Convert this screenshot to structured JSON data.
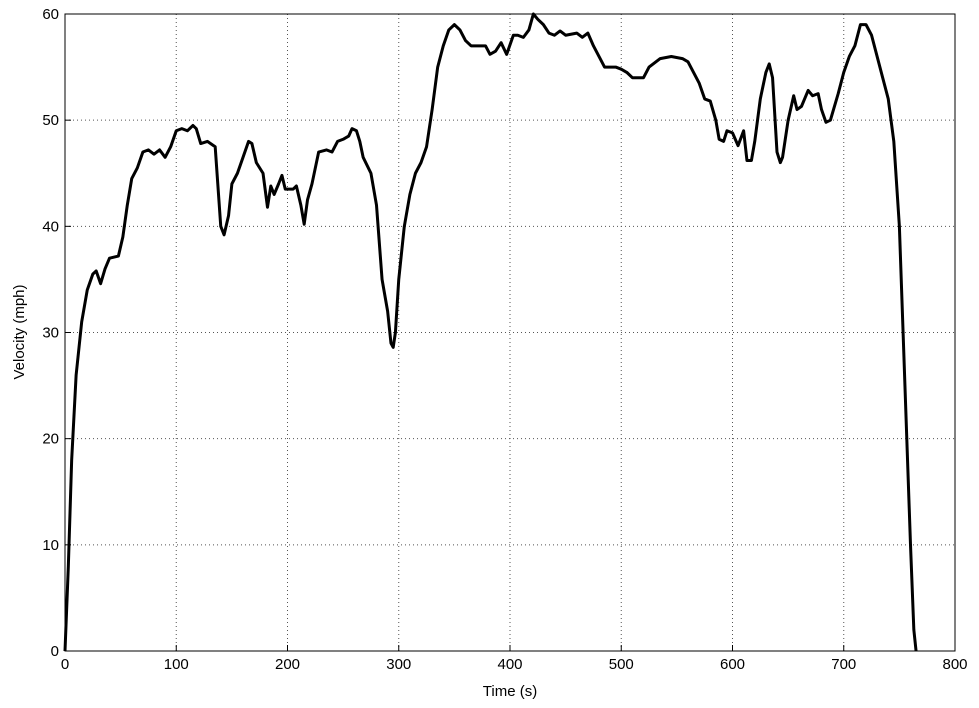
{
  "chart_data": {
    "type": "line",
    "xlabel": "Time (s)",
    "ylabel": "Velocity (mph)",
    "x": [
      0,
      3,
      6,
      10,
      15,
      20,
      25,
      28,
      32,
      36,
      40,
      48,
      52,
      56,
      60,
      65,
      70,
      75,
      80,
      85,
      90,
      95,
      100,
      105,
      110,
      115,
      118,
      122,
      128,
      135,
      140,
      143,
      147,
      150,
      155,
      160,
      165,
      168,
      172,
      178,
      182,
      185,
      188,
      192,
      195,
      198,
      205,
      208,
      212,
      215,
      218,
      222,
      228,
      235,
      240,
      245,
      250,
      255,
      258,
      262,
      265,
      268,
      275,
      280,
      285,
      290,
      293,
      295,
      297,
      300,
      305,
      310,
      315,
      320,
      325,
      330,
      335,
      340,
      345,
      350,
      355,
      360,
      365,
      372,
      378,
      382,
      387,
      392,
      397,
      403,
      407,
      412,
      417,
      421,
      425,
      430,
      435,
      440,
      445,
      450,
      460,
      465,
      470,
      475,
      480,
      485,
      495,
      500,
      505,
      510,
      520,
      525,
      535,
      545,
      555,
      560,
      565,
      570,
      575,
      580,
      585,
      588,
      592,
      595,
      600,
      605,
      610,
      613,
      617,
      620,
      625,
      630,
      633,
      636,
      640,
      643,
      645,
      650,
      655,
      658,
      662,
      668,
      672,
      677,
      680,
      684,
      688,
      695,
      700,
      705,
      710,
      715,
      720,
      725,
      730,
      735,
      740,
      745,
      750,
      755,
      760,
      763,
      765
    ],
    "series": [
      {
        "name": "Velocity",
        "color": "#000000",
        "values": [
          0,
          8,
          18,
          26,
          31,
          34,
          35.5,
          35.8,
          34.6,
          36,
          37,
          37.2,
          39,
          42,
          44.5,
          45.5,
          47,
          47.2,
          46.8,
          47.2,
          46.5,
          47.5,
          49,
          49.2,
          49,
          49.5,
          49.2,
          47.8,
          48,
          47.5,
          40,
          39.2,
          41,
          44,
          45,
          46.5,
          48,
          47.8,
          46,
          45,
          41.8,
          43.8,
          43,
          44,
          44.8,
          43.5,
          43.5,
          43.8,
          42,
          40.2,
          42.5,
          44,
          47,
          47.2,
          47,
          48,
          48.2,
          48.5,
          49.2,
          49,
          48,
          46.5,
          45,
          42,
          35,
          32,
          29,
          28.6,
          30,
          35,
          40,
          43,
          45,
          46,
          47.5,
          51,
          55,
          57,
          58.5,
          59,
          58.5,
          57.5,
          57,
          57,
          57,
          56.2,
          56.5,
          57.3,
          56.2,
          58,
          58,
          57.8,
          58.5,
          60,
          59.5,
          59,
          58.2,
          58,
          58.4,
          58,
          58.2,
          57.8,
          58.2,
          57,
          56,
          55,
          55,
          54.8,
          54.5,
          54,
          54,
          55,
          55.8,
          56,
          55.8,
          55.5,
          54.5,
          53.5,
          52,
          51.8,
          50,
          48.2,
          48,
          49,
          48.8,
          47.6,
          49,
          46.2,
          46.2,
          48,
          52,
          54.5,
          55.3,
          54,
          47,
          46,
          46.5,
          50,
          52.3,
          51,
          51.3,
          52.8,
          52.3,
          52.5,
          51,
          49.8,
          50,
          52.5,
          54.5,
          56,
          57,
          59,
          59,
          58,
          56,
          54,
          52,
          48,
          40,
          25,
          10,
          2,
          0
        ]
      }
    ],
    "xlim": [
      0,
      800
    ],
    "xticks": [
      0,
      100,
      200,
      300,
      400,
      500,
      600,
      700,
      800
    ],
    "ylim": [
      0,
      60
    ],
    "yticks": [
      0,
      10,
      20,
      30,
      40,
      50,
      60
    ],
    "grid": true
  }
}
